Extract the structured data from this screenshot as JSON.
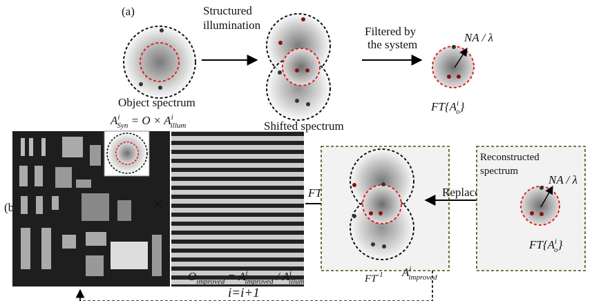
{
  "panel_a": {
    "label": "(a)",
    "step1": [
      "Structured",
      "illumination"
    ],
    "step2": [
      "Filtered  by",
      "the system"
    ],
    "object_caption": "Object spectrum",
    "shifted_caption": "Shifted spectrum",
    "na": "NA / λ",
    "ft": {
      "op": "FT",
      "open": "{",
      "base": "A",
      "sup": "i",
      "sub": "o",
      "close": "}"
    }
  },
  "panel_b": {
    "label": "(b)",
    "syn": {
      "base": "A",
      "sup": "i",
      "sub": "Syn",
      "mid": " = O × ",
      "base2": "A",
      "sup2": "i",
      "sub2": "illum"
    },
    "times": "×",
    "ft": "FT",
    "replace": "Replace",
    "reconstructed": [
      "Reconstructed",
      "spectrum"
    ],
    "na": "NA / λ",
    "ft2": {
      "op": "FT",
      "open": "{",
      "base": "A",
      "sup": "i",
      "sub": "o",
      "close": "}"
    },
    "improved_eq": {
      "base": "O",
      "sub": "improved",
      "mid": " = ",
      "base2": "A",
      "sup2": "i",
      "sub2": "improved",
      "slash": " / ",
      "base3": "A",
      "sup3": "i",
      "sub3": "illum"
    },
    "ift": {
      "base": "FT",
      "sup": "-1"
    },
    "improved": {
      "base": "A",
      "sup": "i",
      "sub": "improved"
    },
    "iterate": "i=i+1"
  }
}
